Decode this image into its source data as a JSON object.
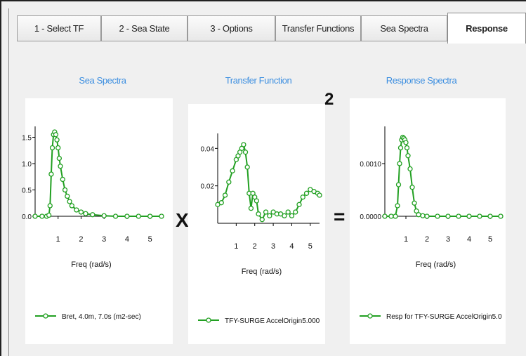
{
  "tabs": [
    {
      "label": "1 - Select TF",
      "active": false
    },
    {
      "label": "2 - Sea State",
      "active": false
    },
    {
      "label": "3 - Options",
      "active": false
    },
    {
      "label": "Transfer Functions",
      "active": false
    },
    {
      "label": "Sea Spectra",
      "active": false
    },
    {
      "label": "Response",
      "active": true
    }
  ],
  "panels": {
    "sea": {
      "title": "Sea Spectra",
      "xlabel": "Freq (rad/s)",
      "legend": "Bret, 4.0m, 7.0s (m2-sec)"
    },
    "tf": {
      "title": "Transfer Function",
      "xlabel": "Freq (rad/s)",
      "legend": "TFY-SURGE AccelOrigin5.000"
    },
    "resp": {
      "title": "Response Spectra",
      "xlabel": "Freq (rad/s)",
      "legend": "Resp for TFY-SURGE AccelOrigin5.0"
    }
  },
  "operators": {
    "times": "X",
    "equals": "=",
    "power": "2"
  },
  "colors": {
    "series": "#22a022",
    "title": "#3b8ee0"
  },
  "chart_data": [
    {
      "type": "line",
      "title": "Sea Spectra",
      "xlabel": "Freq (rad/s)",
      "xlim": [
        0,
        5.5
      ],
      "ylim": [
        0,
        1.6
      ],
      "xticks": [
        "1",
        "2",
        "3",
        "4",
        "5"
      ],
      "yticks": [
        "0.0",
        "0.5",
        "1.0",
        "1.5"
      ],
      "series": [
        {
          "name": "Bret, 4.0m, 7.0s (m2-sec)",
          "x": [
            0.0,
            0.3,
            0.5,
            0.6,
            0.65,
            0.7,
            0.75,
            0.8,
            0.85,
            0.9,
            0.95,
            1.0,
            1.05,
            1.1,
            1.2,
            1.3,
            1.4,
            1.5,
            1.6,
            1.8,
            2.0,
            2.2,
            2.5,
            3.0,
            3.5,
            4.0,
            4.5,
            5.0,
            5.5
          ],
          "y": [
            0,
            0,
            0,
            0.02,
            0.2,
            0.8,
            1.3,
            1.55,
            1.6,
            1.55,
            1.45,
            1.3,
            1.1,
            0.95,
            0.7,
            0.5,
            0.38,
            0.28,
            0.2,
            0.12,
            0.08,
            0.05,
            0.03,
            0.01,
            0,
            0,
            0,
            0,
            0
          ]
        }
      ]
    },
    {
      "type": "line",
      "title": "Transfer Function",
      "xlabel": "Freq (rad/s)",
      "xlim": [
        0,
        5.5
      ],
      "ylim": [
        0,
        0.045
      ],
      "xticks": [
        "1",
        "2",
        "3",
        "4",
        "5"
      ],
      "yticks": [
        "0.02",
        "0.04"
      ],
      "series": [
        {
          "name": "TFY-SURGE AccelOrigin5.000",
          "x": [
            0.0,
            0.2,
            0.4,
            0.6,
            0.8,
            1.0,
            1.1,
            1.2,
            1.3,
            1.4,
            1.5,
            1.6,
            1.7,
            1.8,
            1.9,
            2.0,
            2.1,
            2.2,
            2.4,
            2.6,
            2.8,
            3.0,
            3.2,
            3.4,
            3.6,
            3.8,
            4.0,
            4.2,
            4.4,
            4.6,
            4.8,
            5.0,
            5.2,
            5.4,
            5.5
          ],
          "y": [
            0.01,
            0.011,
            0.015,
            0.022,
            0.028,
            0.034,
            0.036,
            0.038,
            0.04,
            0.042,
            0.038,
            0.03,
            0.016,
            0.008,
            0.016,
            0.014,
            0.012,
            0.005,
            0.002,
            0.006,
            0.004,
            0.006,
            0.005,
            0.005,
            0.004,
            0.006,
            0.004,
            0.006,
            0.01,
            0.014,
            0.016,
            0.018,
            0.017,
            0.016,
            0.015
          ]
        }
      ]
    },
    {
      "type": "line",
      "title": "Response Spectra",
      "xlabel": "Freq (rad/s)",
      "xlim": [
        0,
        5.5
      ],
      "ylim": [
        0,
        0.0016
      ],
      "xticks": [
        "1",
        "2",
        "3",
        "4",
        "5"
      ],
      "yticks": [
        "0.0000",
        "0.0010"
      ],
      "series": [
        {
          "name": "Resp for TFY-SURGE AccelOrigin5.0",
          "x": [
            0.0,
            0.3,
            0.5,
            0.6,
            0.65,
            0.7,
            0.75,
            0.8,
            0.85,
            0.9,
            0.95,
            1.0,
            1.05,
            1.1,
            1.2,
            1.3,
            1.4,
            1.5,
            1.6,
            1.8,
            2.0,
            2.5,
            3.0,
            3.5,
            4.0,
            4.5,
            5.0,
            5.5
          ],
          "y": [
            0,
            0,
            0,
            0.0002,
            0.0006,
            0.001,
            0.0013,
            0.00145,
            0.0015,
            0.00148,
            0.00145,
            0.0014,
            0.0013,
            0.00115,
            0.0009,
            0.00055,
            0.00025,
            0.0001,
            3e-05,
            1e-05,
            0,
            0,
            0,
            0,
            0,
            0,
            0,
            0
          ]
        }
      ]
    }
  ]
}
